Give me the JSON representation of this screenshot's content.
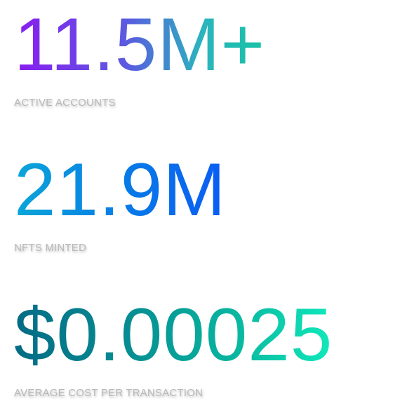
{
  "stats": [
    {
      "value": "11.5M+",
      "label": "ACTIVE ACCOUNTS",
      "gradient": [
        "#8a1cf0",
        "#5a5be0",
        "#2ab5bd",
        "#19c2a6"
      ]
    },
    {
      "value": "21.9M",
      "label": "NFTS MINTED",
      "gradient": [
        "#0aa6d8",
        "#087ce6",
        "#0a5cf4"
      ]
    },
    {
      "value": "$0.00025",
      "label": "AVERAGE COST PER TRANSACTION",
      "gradient": [
        "#046b85",
        "#068c92",
        "#09b7a0",
        "#0fe9ba"
      ]
    }
  ],
  "colors": {
    "label": "#b9b9b9",
    "background": "#ffffff"
  }
}
